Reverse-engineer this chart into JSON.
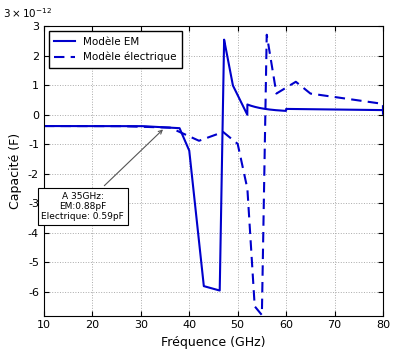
{
  "xlabel": "Fréquence (GHz)",
  "ylabel": "Capacité (F)",
  "xlim": [
    10,
    80
  ],
  "ylim": [
    -6.8,
    3.0
  ],
  "yticks": [
    -6,
    -5,
    -4,
    -3,
    -2,
    -1,
    0,
    1,
    2,
    3
  ],
  "xticks": [
    10,
    20,
    30,
    40,
    50,
    60,
    70,
    80
  ],
  "legend_labels": [
    "Modèle EM",
    "Modèle électrique"
  ],
  "annotation_text": "A 35GHz:\nEM:0.88pF\nElectrique: 0.59pF",
  "color": "#0000cc",
  "line_width": 1.5,
  "grid_color": "#aaaaaa",
  "grid_style": ":",
  "background_color": "#ffffff"
}
